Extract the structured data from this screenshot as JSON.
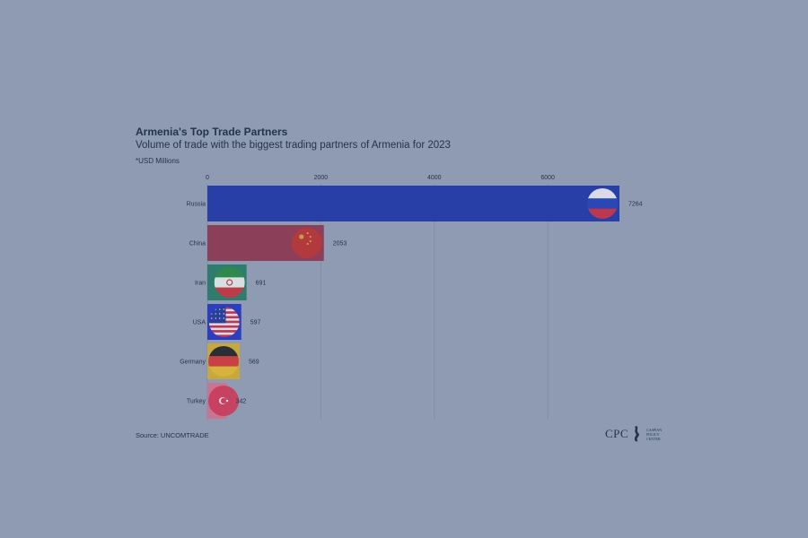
{
  "title": "Armenia's Top Trade Partners",
  "subtitle": "Volume of trade with the biggest trading partners of Armenia for 2023",
  "units_note": "*USD Millions",
  "source": "Source: UNCOMTRADE",
  "logo": {
    "abbr": "CPC",
    "name_lines": [
      "CASPIAN",
      "POLICY",
      "CENTER"
    ]
  },
  "colors": {
    "background": "#8e9bb3",
    "text": "#25334d",
    "grid": "#7e8ba4"
  },
  "chart_data": {
    "type": "bar",
    "orientation": "horizontal",
    "title": "Armenia's Top Trade Partners",
    "subtitle": "Volume of trade with the biggest trading partners of Armenia for 2023",
    "categories": [
      "Russia",
      "China",
      "Iran",
      "USA",
      "Germany",
      "Turkey"
    ],
    "values": [
      7264,
      2053,
      691,
      597,
      569,
      342
    ],
    "value_labels": [
      "7264",
      "2053",
      "691",
      "597",
      "569",
      "342"
    ],
    "bar_colors": [
      "#293fa8",
      "#8b3f58",
      "#2e7d6c",
      "#2c3ec0",
      "#c6a83f",
      "#c9758f"
    ],
    "flags": [
      "russia-flag",
      "china-flag",
      "iran-flag",
      "usa-flag",
      "germany-flag",
      "turkey-flag"
    ],
    "x_ticks": [
      0,
      2000,
      4000,
      6000
    ],
    "x_tick_labels": [
      "0",
      "2000",
      "4000",
      "6000"
    ],
    "xlim": [
      0,
      7264
    ],
    "grid": true,
    "axis_position": "top"
  }
}
